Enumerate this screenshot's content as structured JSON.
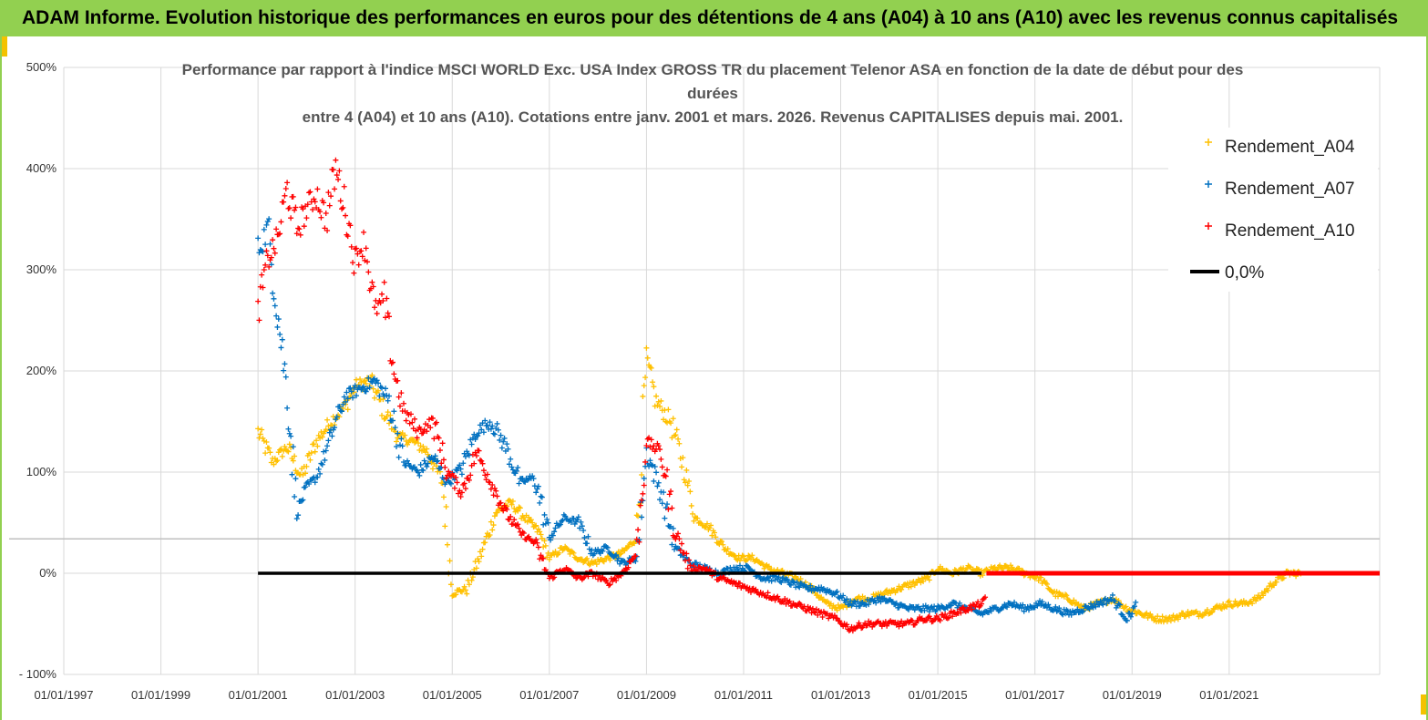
{
  "banner": {
    "text": "ADAM Informe. Evolution historique des performances en euros pour des détentions de 4 ans (A04) à 10 ans (A10) avec les revenus connus capitalisés",
    "background": "#92d050"
  },
  "chart_data": {
    "type": "scatter",
    "title_lines": [
      "Performance par rapport à l'indice MSCI WORLD Exc. USA Index GROSS TR  du placement Telenor ASA en fonction de la date de début pour des",
      "durées",
      "entre 4 (A04) et 10 ans (A10).  Cotations entre janv. 2001 et mars. 2026. Revenus CAPITALISES depuis mai. 2001."
    ],
    "x_tick_labels": [
      "01/01/1997",
      "01/01/1999",
      "01/01/2001",
      "01/01/2003",
      "01/01/2005",
      "01/01/2007",
      "01/01/2009",
      "01/01/2011",
      "01/01/2013",
      "01/01/2015",
      "01/01/2017",
      "01/01/2019",
      "01/01/2021"
    ],
    "y_tick_labels": [
      "500%",
      "400%",
      "300%",
      "200%",
      "100%",
      "0%",
      "- 100%"
    ],
    "xlim": [
      1997.0,
      2024.1
    ],
    "ylim": [
      -100,
      500
    ],
    "grid": true,
    "legend_position": "top-right",
    "series": [
      {
        "name": "Rendement_A04",
        "color": "#ffc000",
        "marker": "+",
        "x": [
          2001.0,
          2001.3,
          2001.6,
          2001.9,
          2002.2,
          2002.5,
          2002.8,
          2003.0,
          2003.3,
          2003.6,
          2003.9,
          2004.2,
          2004.5,
          2004.8,
          2005.0,
          2005.3,
          2005.6,
          2005.9,
          2006.2,
          2006.5,
          2006.8,
          2007.0,
          2007.3,
          2007.6,
          2007.9,
          2008.2,
          2008.5,
          2008.8,
          2009.0,
          2009.2,
          2009.5,
          2009.8,
          2010.0,
          2010.3,
          2010.6,
          2010.9,
          2011.2,
          2011.5,
          2011.8,
          2012.1,
          2012.4,
          2012.7,
          2013.0,
          2013.3,
          2013.6,
          2013.9,
          2014.2,
          2014.5,
          2014.8,
          2015.0,
          2015.3,
          2015.6,
          2015.9,
          2016.2,
          2016.5,
          2016.8,
          2017.1,
          2017.4,
          2017.7,
          2018.0,
          2018.3,
          2018.6,
          2018.9,
          2019.2,
          2019.5,
          2019.8,
          2020.1,
          2020.4,
          2020.7,
          2021.0,
          2021.3,
          2021.6,
          2021.9,
          2022.2,
          2022.5
        ],
        "y": [
          140,
          110,
          125,
          95,
          130,
          150,
          165,
          185,
          190,
          160,
          135,
          130,
          120,
          90,
          -20,
          -15,
          20,
          60,
          70,
          55,
          40,
          15,
          25,
          15,
          10,
          15,
          20,
          35,
          210,
          170,
          150,
          100,
          55,
          45,
          25,
          15,
          15,
          5,
          0,
          -5,
          -15,
          -30,
          -35,
          -25,
          -25,
          -20,
          -15,
          -10,
          -5,
          5,
          0,
          5,
          0,
          5,
          5,
          0,
          -5,
          -20,
          -25,
          -35,
          -30,
          -25,
          -35,
          -40,
          -45,
          -45,
          -40,
          -40,
          -35,
          -30,
          -30,
          -25,
          -10,
          0,
          0
        ]
      },
      {
        "name": "Rendement_A07",
        "color": "#0070c0",
        "marker": "+",
        "x": [
          2001.0,
          2001.2,
          2001.4,
          2001.6,
          2001.8,
          2002.0,
          2002.2,
          2002.4,
          2002.6,
          2002.8,
          2003.0,
          2003.2,
          2003.4,
          2003.7,
          2004.0,
          2004.3,
          2004.6,
          2004.9,
          2005.2,
          2005.5,
          2005.8,
          2006.1,
          2006.4,
          2006.7,
          2007.0,
          2007.3,
          2007.6,
          2007.9,
          2008.2,
          2008.5,
          2008.8,
          2009.0,
          2009.3,
          2009.6,
          2009.9,
          2010.2,
          2010.5,
          2010.8,
          2011.1,
          2011.4,
          2011.7,
          2012.0,
          2012.3,
          2012.6,
          2012.9,
          2013.2,
          2013.5,
          2013.8,
          2014.1,
          2014.4,
          2014.7,
          2015.0,
          2015.3,
          2015.6,
          2015.9,
          2016.2,
          2016.5,
          2016.8,
          2017.1,
          2017.4,
          2017.7,
          2018.0,
          2018.3,
          2018.6,
          2018.9,
          2019.1
        ],
        "y": [
          320,
          340,
          260,
          180,
          60,
          85,
          95,
          120,
          150,
          175,
          180,
          185,
          190,
          170,
          110,
          100,
          115,
          90,
          105,
          140,
          150,
          125,
          90,
          95,
          35,
          55,
          50,
          20,
          25,
          10,
          15,
          120,
          80,
          25,
          10,
          5,
          0,
          5,
          5,
          -5,
          -5,
          -10,
          -15,
          -15,
          -20,
          -30,
          -30,
          -25,
          -30,
          -35,
          -35,
          -35,
          -30,
          -35,
          -40,
          -35,
          -30,
          -35,
          -30,
          -35,
          -40,
          -35,
          -30,
          -25,
          -45,
          -30
        ]
      },
      {
        "name": "Rendement_A10",
        "color": "#ff0000",
        "marker": "+",
        "x": [
          2001.0,
          2001.2,
          2001.4,
          2001.6,
          2001.8,
          2002.0,
          2002.2,
          2002.4,
          2002.6,
          2002.8,
          2003.0,
          2003.2,
          2003.4,
          2003.6,
          2003.8,
          2004.0,
          2004.3,
          2004.6,
          2004.9,
          2005.2,
          2005.5,
          2005.8,
          2006.1,
          2006.4,
          2006.7,
          2007.0,
          2007.3,
          2007.6,
          2007.9,
          2008.2,
          2008.5,
          2008.8,
          2009.0,
          2009.3,
          2009.6,
          2009.9,
          2010.2,
          2010.5,
          2010.8,
          2011.1,
          2011.4,
          2011.7,
          2012.0,
          2012.3,
          2012.6,
          2012.9,
          2013.2,
          2013.5,
          2013.8,
          2014.1,
          2014.4,
          2014.7,
          2015.0,
          2015.3,
          2015.6,
          2015.9,
          2016.0
        ],
        "y": [
          260,
          310,
          330,
          380,
          340,
          360,
          375,
          350,
          400,
          360,
          310,
          330,
          260,
          270,
          200,
          160,
          140,
          150,
          100,
          80,
          120,
          90,
          60,
          40,
          30,
          -5,
          5,
          -5,
          0,
          -10,
          0,
          20,
          130,
          120,
          40,
          5,
          5,
          -5,
          -10,
          -15,
          -20,
          -25,
          -30,
          -35,
          -40,
          -45,
          -55,
          -50,
          -50,
          -50,
          -50,
          -45,
          -45,
          -40,
          -35,
          -30,
          -25
        ]
      },
      {
        "name": "0,0%",
        "color": "#000000",
        "marker": "line",
        "x": [
          2001.0,
          2015.9
        ],
        "y": [
          0,
          0
        ]
      }
    ],
    "red_zero_segment": {
      "x": [
        2016.0,
        2024.1
      ],
      "y": [
        0,
        0
      ]
    }
  }
}
